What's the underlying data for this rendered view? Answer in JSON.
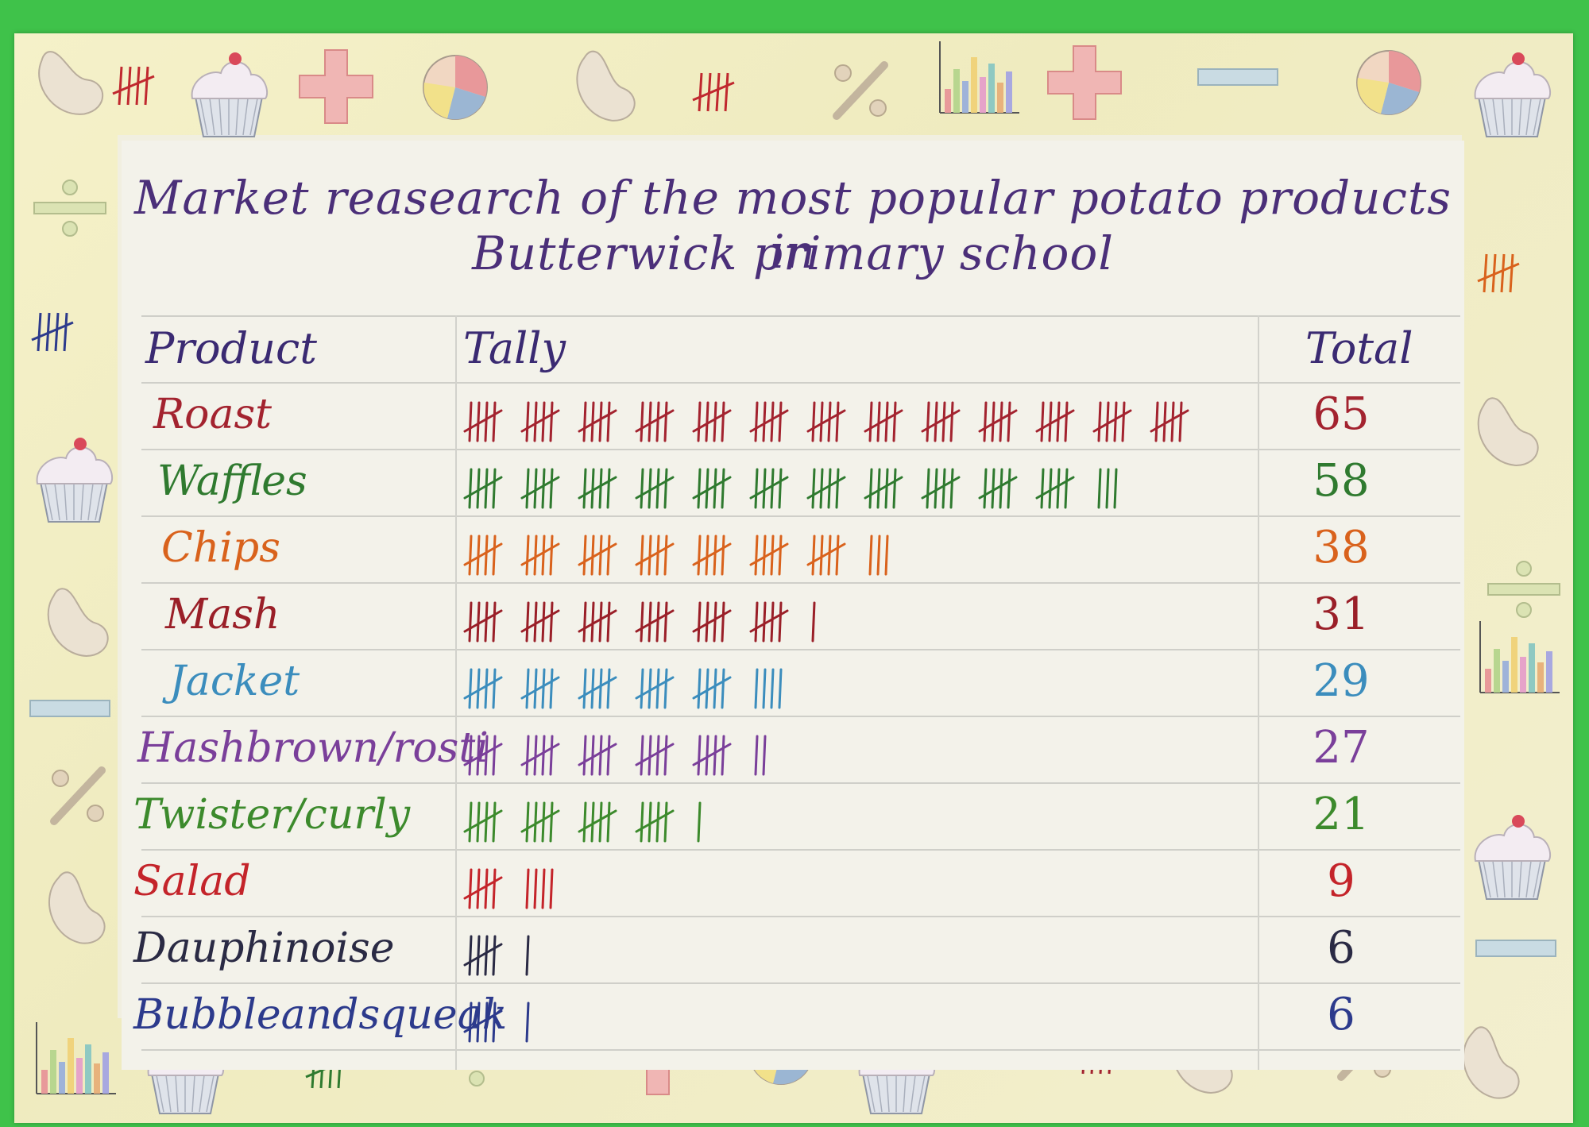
{
  "chart_data": {
    "type": "table",
    "title_lines": [
      "Market reasearch of the most popular potato products in",
      "Butterwick primary school"
    ],
    "headers": {
      "product": "Product",
      "tally": "Tally",
      "total": "Total"
    },
    "rows": [
      {
        "product": "Roast",
        "total": 65,
        "color": "#a3232f"
      },
      {
        "product": "Waffles",
        "total": 58,
        "color": "#2f7a2f"
      },
      {
        "product": "Chips",
        "total": 38,
        "color": "#d9621c"
      },
      {
        "product": "Mash",
        "total": 31,
        "color": "#9a1f28"
      },
      {
        "product": "Jacket",
        "total": 29,
        "color": "#3b8dbd"
      },
      {
        "product": "Hashbrown/rosti",
        "total": 27,
        "color": "#7a3f9a"
      },
      {
        "product": "Twister/curly",
        "total": 21,
        "color": "#3c8a2c"
      },
      {
        "product": "Salad",
        "total": 9,
        "color": "#c4242a"
      },
      {
        "product": "Dauphinoise",
        "total": 6,
        "color": "#2a2a44"
      },
      {
        "product": "Bubbleandsqueak",
        "total": 6,
        "color": "#2c3a8c"
      }
    ]
  },
  "decoration": {
    "paper_color": "#f1efe0",
    "background_color": "#3fc24a",
    "icons": [
      "bean-icon",
      "tally-icon",
      "cupcake-icon",
      "plus-icon",
      "pie-chart-icon",
      "percent-icon",
      "bar-chart-icon",
      "minus-icon",
      "divide-icon"
    ]
  }
}
